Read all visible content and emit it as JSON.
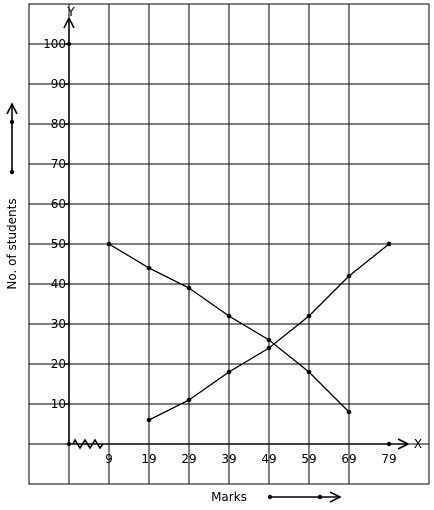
{
  "chart_data": {
    "type": "line",
    "xlabel": "Marks",
    "ylabel": "No. of students",
    "x_axis_letter": "X",
    "y_axis_letter": "Y",
    "x_ticks": [
      "9",
      "19",
      "29",
      "39",
      "49",
      "59",
      "69",
      "79"
    ],
    "y_ticks": [
      "10",
      "20",
      "30",
      "40",
      "50",
      "60",
      "70",
      "80",
      "90",
      "100"
    ],
    "xlim": [
      -1,
      89
    ],
    "ylim": [
      0,
      110
    ],
    "grid": true,
    "series": [
      {
        "x": [
          9,
          19,
          29,
          39,
          49,
          59,
          69
        ],
        "y": [
          50,
          44,
          39,
          32,
          26,
          18,
          8
        ]
      },
      {
        "x": [
          19,
          29,
          39,
          49,
          59,
          69,
          79
        ],
        "y": [
          6,
          11,
          18,
          24,
          32,
          42,
          50
        ]
      }
    ]
  }
}
